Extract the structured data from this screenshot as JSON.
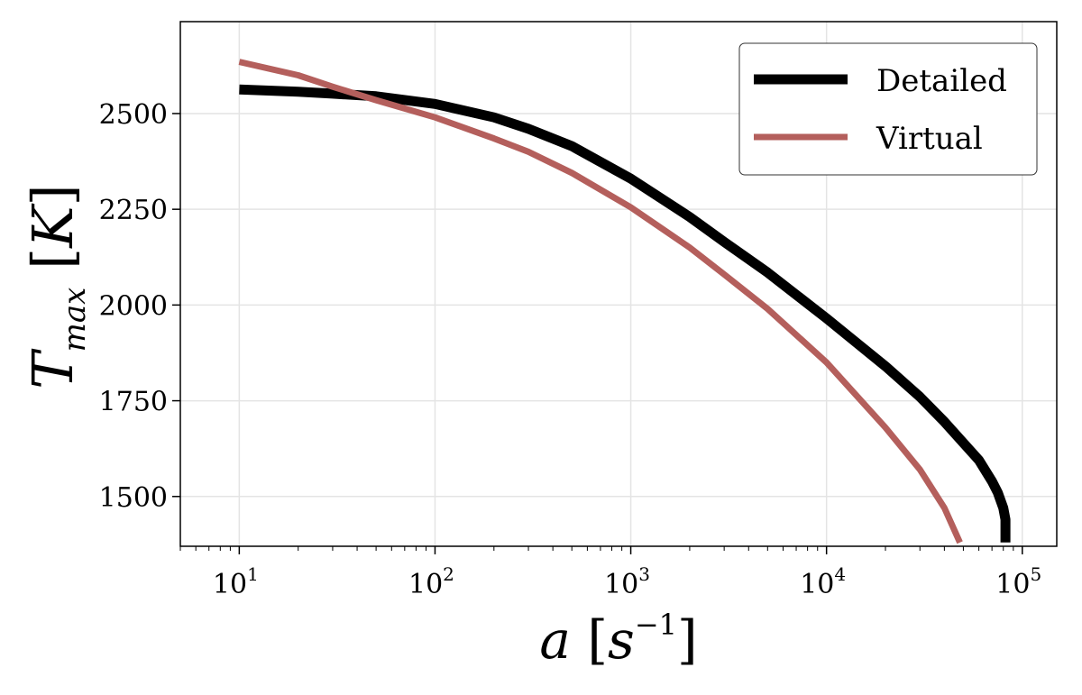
{
  "chart_data": {
    "type": "line",
    "xscale": "log",
    "xlim": [
      5,
      150000
    ],
    "ylim": [
      1370,
      2740
    ],
    "grid": true,
    "legend_position": "top-right",
    "xlabel": {
      "base": "a",
      "bracket_open": "[",
      "unit": "s",
      "unit_exp": "−1",
      "bracket_close": "]"
    },
    "ylabel": {
      "base": "T",
      "sub": "max",
      "bracket_open": "[",
      "unit": "K",
      "bracket_close": "]"
    },
    "x_ticks": [
      {
        "value": 10,
        "base": "10",
        "exp": "1"
      },
      {
        "value": 100,
        "base": "10",
        "exp": "2"
      },
      {
        "value": 1000,
        "base": "10",
        "exp": "3"
      },
      {
        "value": 10000,
        "base": "10",
        "exp": "4"
      },
      {
        "value": 100000,
        "base": "10",
        "exp": "5"
      }
    ],
    "y_ticks": [
      {
        "value": 1500,
        "label": "1500"
      },
      {
        "value": 1750,
        "label": "1750"
      },
      {
        "value": 2000,
        "label": "2000"
      },
      {
        "value": 2250,
        "label": "2250"
      },
      {
        "value": 2500,
        "label": "2500"
      }
    ],
    "series": [
      {
        "name": "Detailed",
        "color": "#000000",
        "x": [
          10,
          20,
          30,
          50,
          100,
          200,
          300,
          500,
          1000,
          2000,
          3000,
          5000,
          10000,
          20000,
          30000,
          40000,
          50000,
          60000,
          70000,
          75000,
          80000,
          82000,
          82000
        ],
        "y": [
          2563,
          2557,
          2552,
          2545,
          2525,
          2490,
          2460,
          2415,
          2330,
          2230,
          2165,
          2085,
          1965,
          1840,
          1760,
          1695,
          1640,
          1595,
          1540,
          1510,
          1470,
          1440,
          1380
        ]
      },
      {
        "name": "Virtual",
        "color": "#b45f5c",
        "x": [
          10,
          20,
          30,
          50,
          100,
          200,
          300,
          500,
          1000,
          2000,
          3000,
          5000,
          10000,
          20000,
          30000,
          40000,
          48000
        ],
        "y": [
          2635,
          2600,
          2570,
          2535,
          2490,
          2435,
          2400,
          2345,
          2255,
          2150,
          2080,
          1990,
          1850,
          1680,
          1570,
          1470,
          1380
        ]
      }
    ]
  }
}
